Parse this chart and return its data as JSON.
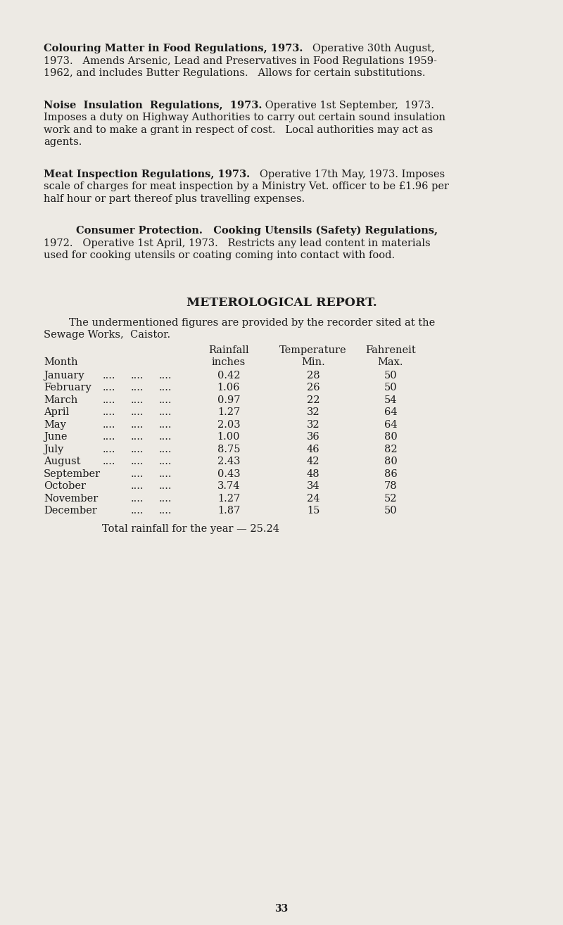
{
  "bg_color": "#edeae4",
  "text_color": "#1a1a1a",
  "page_number": "33",
  "font_size_body": 10.5,
  "font_size_table": 10.5,
  "font_size_title": 12.5,
  "font_size_page": 10.0,
  "paragraphs": [
    {
      "lines": [
        [
          {
            "text": "Colouring Matter in Food Regulations, 1973.",
            "bold": true
          },
          {
            "text": "   Operative 30th August,",
            "bold": false
          }
        ],
        [
          {
            "text": "1973.   Amends Arsenic, Lead and Preservatives in Food Regulations 1959-",
            "bold": false
          }
        ],
        [
          {
            "text": "1962, and includes Butter Regulations.   Allows for certain substitutions.",
            "bold": false
          }
        ]
      ],
      "indent_first": false
    },
    {
      "lines": [
        [
          {
            "text": "Noise  Insulation  Regulations,  1973.",
            "bold": true
          },
          {
            "text": " Operative 1st September,  1973.",
            "bold": false
          }
        ],
        [
          {
            "text": "Imposes a duty on Highway Authorities to carry out certain sound insulation",
            "bold": false
          }
        ],
        [
          {
            "text": "work and to make a grant in respect of cost.   Local authorities may act as",
            "bold": false
          }
        ],
        [
          {
            "text": "agents.",
            "bold": false
          }
        ]
      ],
      "indent_first": false
    },
    {
      "lines": [
        [
          {
            "text": "Meat Inspection Regulations, 1973.",
            "bold": true
          },
          {
            "text": "   Operative 17th May, 1973. Imposes",
            "bold": false
          }
        ],
        [
          {
            "text": "scale of charges for meat inspection by a Ministry Vet. officer to be £1.96 per",
            "bold": false
          }
        ],
        [
          {
            "text": "half hour or part thereof plus travelling expenses.",
            "bold": false
          }
        ]
      ],
      "indent_first": false
    },
    {
      "lines": [
        [
          {
            "text": "Consumer Protection.   Cooking Utensils (Safety) Regulations,",
            "bold": true
          }
        ],
        [
          {
            "text": "1972.   Operative 1st April, 1973.   Restricts any lead content in materials",
            "bold": false
          }
        ],
        [
          {
            "text": "used for cooking utensils or coating coming into contact with food.",
            "bold": false
          }
        ]
      ],
      "indent_first": true
    }
  ],
  "section_title": "METEROLOGICAL REPORT.",
  "months": [
    "January",
    "February",
    "March",
    "April",
    "May",
    "June",
    "July",
    "August",
    "September",
    "October",
    "November",
    "December"
  ],
  "rainfall": [
    "0.42",
    "1.06",
    "0.97",
    "1.27",
    "2.03",
    "1.00",
    "8.75",
    "2.43",
    "0.43",
    "3.74",
    "1.27",
    "1.87"
  ],
  "temp_min": [
    "28",
    "26",
    "22",
    "32",
    "32",
    "36",
    "46",
    "42",
    "48",
    "34",
    "24",
    "15"
  ],
  "temp_max": [
    "50",
    "50",
    "54",
    "64",
    "64",
    "80",
    "82",
    "80",
    "86",
    "78",
    "52",
    "50"
  ],
  "total_rainfall_text": "Total rainfall for the year — 25.24",
  "three_dot_months": [
    "January",
    "February",
    "March",
    "April",
    "May",
    "June",
    "July",
    "August"
  ]
}
